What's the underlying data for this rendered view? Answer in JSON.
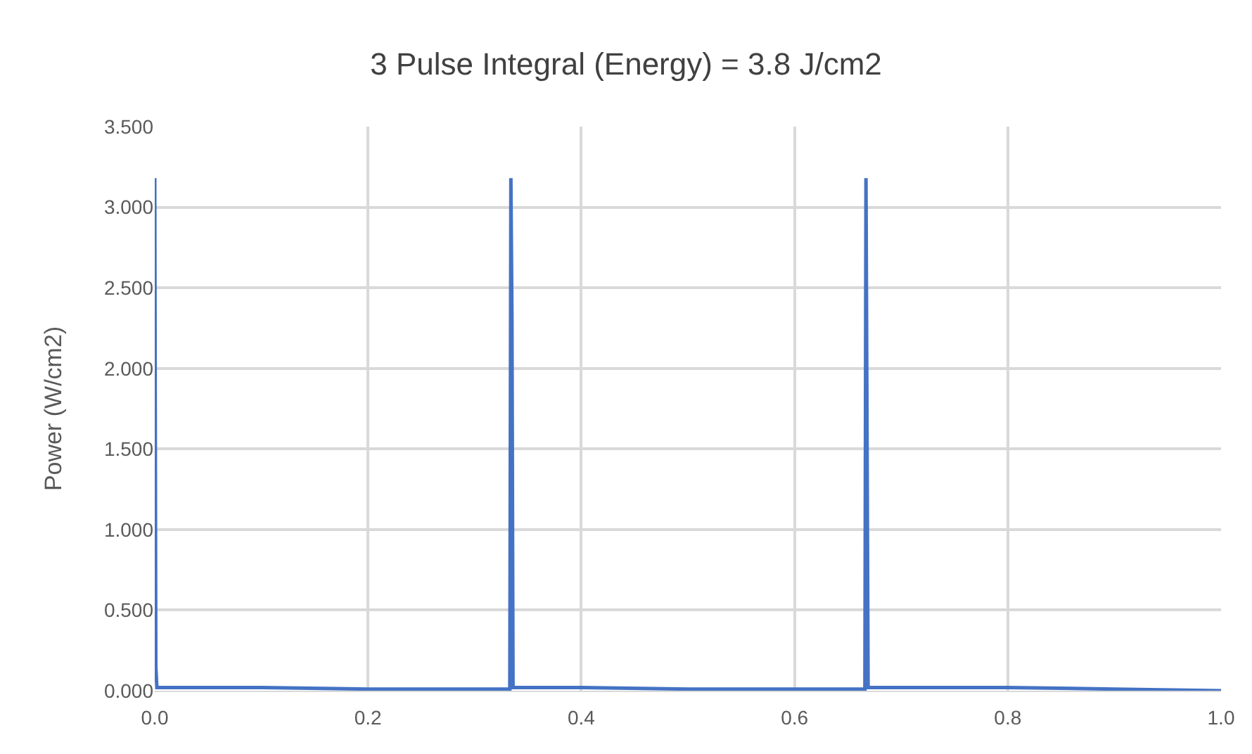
{
  "chart_data": {
    "type": "line",
    "title": "3 Pulse Integral (Energy) = 3.8 J/cm2",
    "ylabel": "Power (W/cm2)",
    "x": [
      0,
      0.001,
      0.002,
      0.1,
      0.2,
      0.333,
      0.334,
      0.335,
      0.336,
      0.4,
      0.5,
      0.6,
      0.666,
      0.667,
      0.668,
      0.669,
      0.8,
      0.9,
      1.0
    ],
    "series": [
      {
        "color": "#4472c4",
        "values": [
          3.18,
          0.15,
          0.02,
          0.02,
          0.01,
          0.01,
          3.18,
          2.3,
          0.02,
          0.02,
          0.01,
          0.01,
          0.01,
          3.18,
          1.6,
          0.02,
          0.02,
          0.01,
          0.0
        ]
      }
    ],
    "xlim": [
      0,
      1
    ],
    "ylim": [
      0,
      3.5
    ],
    "xticks": [
      {
        "value": 0,
        "label": "0.0"
      },
      {
        "value": 0.2,
        "label": "0.2"
      },
      {
        "value": 0.4,
        "label": "0.4"
      },
      {
        "value": 0.6,
        "label": "0.6"
      },
      {
        "value": 0.8,
        "label": "0.8"
      },
      {
        "value": 1,
        "label": "1.0"
      }
    ],
    "yticks": [
      {
        "value": 0,
        "label": "0.000"
      },
      {
        "value": 0.5,
        "label": "0.500"
      },
      {
        "value": 1,
        "label": "1.000"
      },
      {
        "value": 1.5,
        "label": "1.500"
      },
      {
        "value": 2,
        "label": "2.000"
      },
      {
        "value": 2.5,
        "label": "2.500"
      },
      {
        "value": 3,
        "label": "3.000"
      },
      {
        "value": 3.5,
        "label": "3.500"
      }
    ],
    "grid": true,
    "marker": "none",
    "line_style": "solid"
  }
}
